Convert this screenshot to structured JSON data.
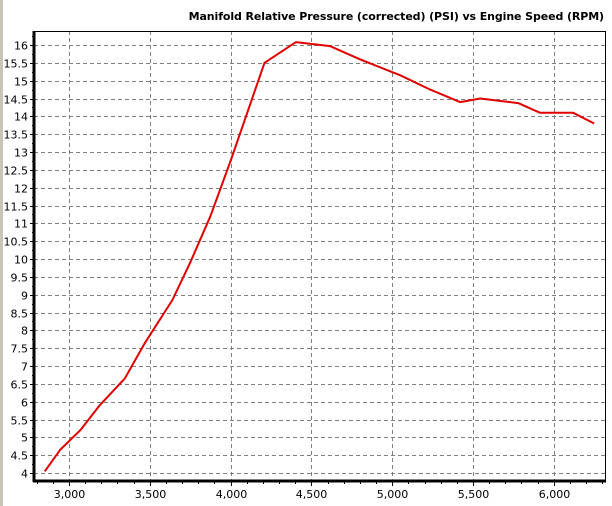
{
  "chart_data": {
    "type": "line",
    "title": "Manifold Relative Pressure (corrected) (PSI) vs Engine Speed (RPM)",
    "xlabel": "Engine Speed (RPM)",
    "ylabel": "Manifold Relative Pressure (corrected) (PSI)",
    "xlim": [
      2780,
      6340
    ],
    "ylim": [
      3.6,
      16.4
    ],
    "x_ticks": [
      3000,
      3500,
      4000,
      4500,
      5000,
      5500,
      6000
    ],
    "x_tick_labels": [
      "3,000",
      "3,500",
      "4,000",
      "4,500",
      "5,000",
      "5,500",
      "6,000"
    ],
    "y_ticks": [
      4,
      4.5,
      5,
      5.5,
      6,
      6.5,
      7,
      7.5,
      8,
      8.5,
      9,
      9.5,
      10,
      10.5,
      11,
      11.5,
      12,
      12.5,
      13,
      13.5,
      14,
      14.5,
      15,
      15.5,
      16
    ],
    "y_tick_labels": [
      "4",
      "4.5",
      "5",
      "5.5",
      "6",
      "6.5",
      "7",
      "7.5",
      "8",
      "8.5",
      "9",
      "9.5",
      "10",
      "10.5",
      "11",
      "11.5",
      "12",
      "12.5",
      "13",
      "13.5",
      "14",
      "14.5",
      "15",
      "15.5",
      "16"
    ],
    "grid": true,
    "legend": "none",
    "series": [
      {
        "name": "Manifold Relative Pressure (corrected) (PSI)",
        "color": "#e00000",
        "x": [
          2850,
          2945,
          3070,
          3190,
          3345,
          3470,
          3640,
          3750,
          3875,
          4000,
          4210,
          4405,
          4615,
          4800,
          5050,
          5235,
          5420,
          5545,
          5780,
          5915,
          6120,
          6250
        ],
        "y": [
          4.05,
          4.65,
          5.2,
          5.9,
          6.65,
          7.65,
          8.85,
          9.9,
          11.2,
          12.75,
          15.5,
          16.08,
          15.97,
          15.6,
          15.15,
          14.75,
          14.4,
          14.5,
          14.37,
          14.1,
          14.1,
          13.8
        ]
      }
    ]
  }
}
